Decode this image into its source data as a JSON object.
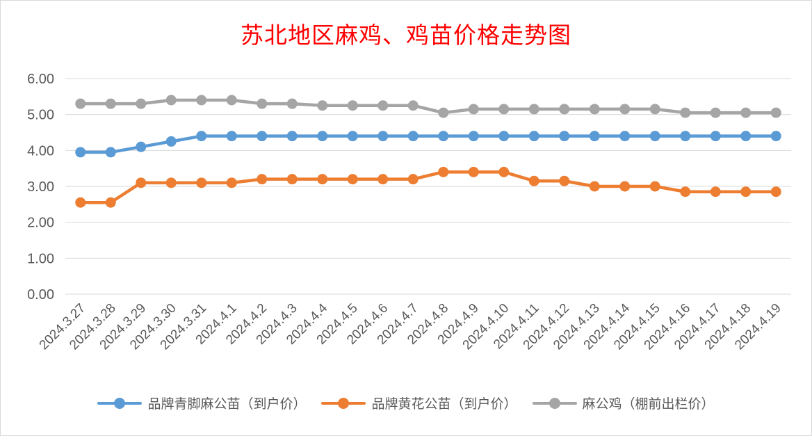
{
  "chart_data": {
    "type": "line",
    "title": "苏北地区麻鸡、鸡苗价格走势图",
    "categories": [
      "2024.3.27",
      "2024.3.28",
      "2024.3.29",
      "2024.3.30",
      "2024.3.31",
      "2024.4.1",
      "2024.4.2",
      "2024.4.3",
      "2024.4.4",
      "2024.4.5",
      "2024.4.6",
      "2024.4.7",
      "2024.4.8",
      "2024.4.9",
      "2024.4.10",
      "2024.4.11",
      "2024.4.12",
      "2024.4.13",
      "2024.4.14",
      "2024.4.15",
      "2024.4.16",
      "2024.4.17",
      "2024.4.18",
      "2024.4.19"
    ],
    "ylim": [
      0,
      6
    ],
    "yticks": [
      "0.00",
      "1.00",
      "2.00",
      "3.00",
      "4.00",
      "5.00",
      "6.00"
    ],
    "grid": true,
    "legend": "bottom",
    "series": [
      {
        "name": "品牌青脚麻公苗（到户价）",
        "color": "#5b9bd5",
        "values": [
          3.95,
          3.95,
          4.1,
          4.25,
          4.4,
          4.4,
          4.4,
          4.4,
          4.4,
          4.4,
          4.4,
          4.4,
          4.4,
          4.4,
          4.4,
          4.4,
          4.4,
          4.4,
          4.4,
          4.4,
          4.4,
          4.4,
          4.4,
          4.4
        ]
      },
      {
        "name": "品牌黄花公苗（到户价）",
        "color": "#ed7d31",
        "values": [
          2.55,
          2.55,
          3.1,
          3.1,
          3.1,
          3.1,
          3.2,
          3.2,
          3.2,
          3.2,
          3.2,
          3.2,
          3.4,
          3.4,
          3.4,
          3.15,
          3.15,
          3.0,
          3.0,
          3.0,
          2.85,
          2.85,
          2.85,
          2.85
        ]
      },
      {
        "name": "麻公鸡（棚前出栏价）",
        "color": "#a5a5a5",
        "values": [
          5.3,
          5.3,
          5.3,
          5.4,
          5.4,
          5.4,
          5.3,
          5.3,
          5.25,
          5.25,
          5.25,
          5.25,
          5.05,
          5.15,
          5.15,
          5.15,
          5.15,
          5.15,
          5.15,
          5.15,
          5.05,
          5.05,
          5.05,
          5.05
        ]
      }
    ]
  }
}
